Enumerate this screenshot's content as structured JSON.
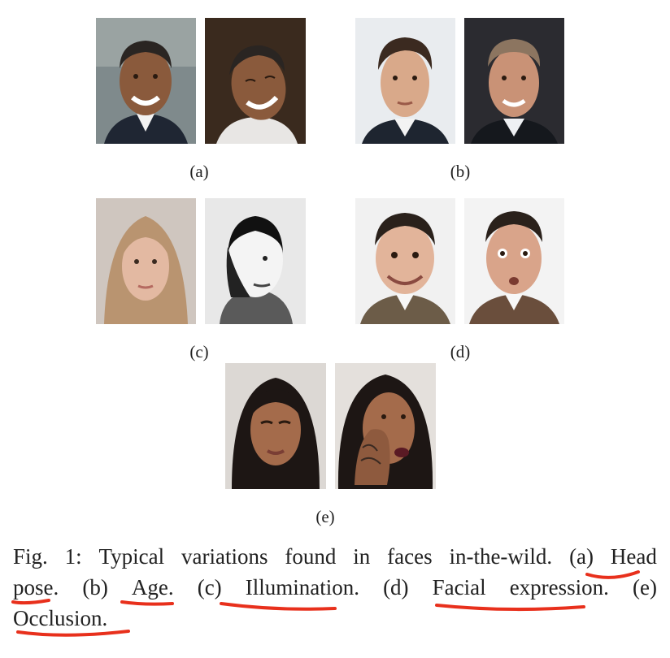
{
  "panels": [
    {
      "label": "(a)",
      "photo_left": "Smiling man in suit, frontal view",
      "photo_right": "Same man laughing, head tilted",
      "skin": "#8a5a3c",
      "hair": "#2a2522",
      "bg_left": "#7f8a8c",
      "bg_right": "#3a2a1e"
    },
    {
      "label": "(b)",
      "photo_left": "Young man, frontal view",
      "photo_right": "Same man, older",
      "skin": "#d9a98a",
      "hair": "#3b2a20",
      "bg_left": "#e9ecef",
      "bg_right": "#2b2b30"
    },
    {
      "label": "(c)",
      "photo_left": "Woman, natural lighting",
      "photo_right": "Same woman, harsh side lighting",
      "skin": "#e3b9a2",
      "hair": "#b99470",
      "bg_left": "#cfc6bf",
      "bg_right": "#e8e8e8"
    },
    {
      "label": "(d)",
      "photo_left": "Man with exaggerated grin",
      "photo_right": "Same man, surprised expression",
      "skin": "#e2b49a",
      "hair": "#2a211b",
      "bg_left": "#f1f1f1",
      "bg_right": "#f3f3f3"
    },
    {
      "label": "(e)",
      "photo_left": "Woman, frontal view",
      "photo_right": "Same woman, hand covering face",
      "skin": "#a46b4b",
      "hair": "#1d1614",
      "bg_left": "#dcd8d4",
      "bg_right": "#e4e0dc"
    }
  ],
  "caption": {
    "line1": [
      "Fig.",
      "1:",
      "Typical",
      "variations",
      "found",
      "in",
      "faces",
      "in-the-wild.",
      "(a)",
      "Head"
    ],
    "line2": [
      "pose.",
      "(b)",
      "Age.",
      "(c)",
      "Illumination.",
      "(d)",
      "Facial",
      "expression.",
      "(e)"
    ],
    "line3": [
      "Occlusion."
    ]
  },
  "annotation_color": "#e8301c"
}
